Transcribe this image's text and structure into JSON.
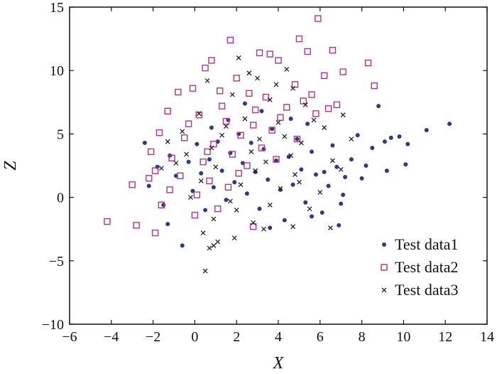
{
  "chart_data": {
    "type": "scatter",
    "title": "",
    "xlabel": "X",
    "ylabel": "Z",
    "xlim": [
      -6,
      14
    ],
    "ylim": [
      -10,
      15
    ],
    "xticks": [
      -6,
      -4,
      -2,
      0,
      2,
      4,
      6,
      8,
      10,
      12,
      14
    ],
    "yticks": [
      -10,
      -5,
      0,
      5,
      10,
      15
    ],
    "xtick_labels": [
      "−6",
      "−4",
      "−2",
      "0",
      "2",
      "4",
      "6",
      "8",
      "10",
      "12",
      "14"
    ],
    "ytick_labels": [
      "−10",
      "−5",
      "0",
      "5",
      "10",
      "15"
    ],
    "grid": false,
    "legend_position": "bottom-right",
    "series": [
      {
        "name": "Test data1",
        "marker": "dot",
        "color": "#2e3a87",
        "points": [
          [
            12.2,
            5.8
          ],
          [
            11.1,
            5.3
          ],
          [
            10.2,
            4.2
          ],
          [
            9.8,
            4.8
          ],
          [
            9.1,
            4.4
          ],
          [
            8.8,
            7.2
          ],
          [
            9.4,
            4.7
          ],
          [
            8.5,
            3.9
          ],
          [
            8.2,
            2.5
          ],
          [
            7.8,
            4.9
          ],
          [
            7.5,
            3.0
          ],
          [
            7.2,
            1.6
          ],
          [
            7.0,
            -0.5
          ],
          [
            6.8,
            2.4
          ],
          [
            6.6,
            4.1
          ],
          [
            6.4,
            0.9
          ],
          [
            6.1,
            -1.2
          ],
          [
            5.8,
            1.8
          ],
          [
            5.6,
            3.6
          ],
          [
            5.3,
            -0.4
          ],
          [
            5.1,
            2.2
          ],
          [
            4.9,
            4.6
          ],
          [
            4.7,
            1.0
          ],
          [
            4.5,
            3.2
          ],
          [
            4.3,
            -1.8
          ],
          [
            4.1,
            0.6
          ],
          [
            3.9,
            2.9
          ],
          [
            3.7,
            5.4
          ],
          [
            3.5,
            1.4
          ],
          [
            3.3,
            3.8
          ],
          [
            3.1,
            -0.9
          ],
          [
            2.9,
            2.0
          ],
          [
            2.7,
            4.3
          ],
          [
            2.5,
            0.3
          ],
          [
            2.3,
            2.7
          ],
          [
            2.1,
            5.0
          ],
          [
            1.9,
            1.2
          ],
          [
            1.7,
            3.5
          ],
          [
            1.5,
            -0.2
          ],
          [
            1.3,
            2.1
          ],
          [
            1.1,
            4.4
          ],
          [
            0.9,
            0.8
          ],
          [
            0.7,
            3.0
          ],
          [
            0.5,
            -1.0
          ],
          [
            0.3,
            1.9
          ],
          [
            0.1,
            4.2
          ],
          [
            -0.1,
            0.5
          ],
          [
            -0.3,
            2.8
          ],
          [
            -0.6,
            -3.8
          ],
          [
            -0.9,
            1.7
          ],
          [
            -1.2,
            3.3
          ],
          [
            -1.5,
            -0.6
          ],
          [
            -1.8,
            2.4
          ],
          [
            -2.2,
            0.9
          ],
          [
            -2.4,
            4.3
          ],
          [
            -1.3,
            -2.1
          ],
          [
            6.2,
            2.0
          ],
          [
            7.1,
            0.2
          ],
          [
            5.6,
            -1.5
          ],
          [
            8.0,
            1.5
          ],
          [
            9.2,
            2.1
          ],
          [
            10.1,
            2.6
          ],
          [
            6.9,
            -2.2
          ],
          [
            5.4,
            5.8
          ],
          [
            4.6,
            6.2
          ],
          [
            3.2,
            6.8
          ],
          [
            2.4,
            7.4
          ],
          [
            1.6,
            6.1
          ],
          [
            0.8,
            5.5
          ],
          [
            3.6,
            -2.4
          ]
        ]
      },
      {
        "name": "Test data2",
        "marker": "square",
        "color": "#b0348a",
        "points": [
          [
            5.9,
            14.1
          ],
          [
            5.0,
            12.5
          ],
          [
            1.7,
            12.4
          ],
          [
            3.1,
            11.4
          ],
          [
            3.6,
            11.3
          ],
          [
            4.0,
            10.8
          ],
          [
            6.6,
            11.6
          ],
          [
            5.4,
            11.5
          ],
          [
            0.5,
            10.2
          ],
          [
            0.8,
            10.8
          ],
          [
            2.0,
            9.4
          ],
          [
            4.8,
            8.9
          ],
          [
            6.2,
            9.6
          ],
          [
            7.1,
            9.9
          ],
          [
            8.3,
            10.6
          ],
          [
            8.6,
            8.8
          ],
          [
            -0.1,
            8.6
          ],
          [
            -0.8,
            8.3
          ],
          [
            1.2,
            8.4
          ],
          [
            2.6,
            8.2
          ],
          [
            3.4,
            7.9
          ],
          [
            5.2,
            7.6
          ],
          [
            6.8,
            7.3
          ],
          [
            -1.3,
            6.8
          ],
          [
            0.2,
            6.5
          ],
          [
            1.5,
            6.0
          ],
          [
            2.8,
            5.7
          ],
          [
            4.1,
            6.3
          ],
          [
            5.8,
            6.6
          ],
          [
            -1.7,
            5.1
          ],
          [
            -0.5,
            4.7
          ],
          [
            0.9,
            4.2
          ],
          [
            2.2,
            4.9
          ],
          [
            3.7,
            5.3
          ],
          [
            4.9,
            4.6
          ],
          [
            -2.1,
            3.6
          ],
          [
            -1.1,
            3.1
          ],
          [
            0.4,
            2.8
          ],
          [
            1.8,
            3.4
          ],
          [
            3.2,
            3.9
          ],
          [
            -1.9,
            2.1
          ],
          [
            -0.7,
            1.7
          ],
          [
            0.7,
            1.3
          ],
          [
            2.1,
            1.9
          ],
          [
            -2.2,
            1.5
          ],
          [
            -3.0,
            1.0
          ],
          [
            -1.2,
            0.6
          ],
          [
            0.1,
            0.2
          ],
          [
            1.6,
            0.8
          ],
          [
            -1.6,
            -0.6
          ],
          [
            0.0,
            -1.4
          ],
          [
            -2.8,
            -2.2
          ],
          [
            -4.2,
            -1.9
          ],
          [
            -1.9,
            -2.8
          ],
          [
            2.8,
            -2.3
          ],
          [
            1.1,
            -0.9
          ],
          [
            2.5,
            2.5
          ],
          [
            3.9,
            3.0
          ],
          [
            4.4,
            7.1
          ],
          [
            2.9,
            6.9
          ],
          [
            1.3,
            7.2
          ],
          [
            5.6,
            8.1
          ],
          [
            6.4,
            7.0
          ],
          [
            0.6,
            3.6
          ],
          [
            -0.3,
            5.8
          ]
        ]
      },
      {
        "name": "Test data3",
        "marker": "cross",
        "color": "#222222",
        "points": [
          [
            2.1,
            11.0
          ],
          [
            4.4,
            10.1
          ],
          [
            3.0,
            9.4
          ],
          [
            0.6,
            9.2
          ],
          [
            4.7,
            8.6
          ],
          [
            1.8,
            8.1
          ],
          [
            3.6,
            7.7
          ],
          [
            5.3,
            7.3
          ],
          [
            7.1,
            6.5
          ],
          [
            0.2,
            6.6
          ],
          [
            2.4,
            6.2
          ],
          [
            4.0,
            5.9
          ],
          [
            6.2,
            5.5
          ],
          [
            -0.6,
            5.2
          ],
          [
            1.3,
            4.9
          ],
          [
            3.1,
            4.6
          ],
          [
            5.1,
            4.3
          ],
          [
            7.5,
            4.6
          ],
          [
            -1.3,
            4.4
          ],
          [
            0.8,
            3.9
          ],
          [
            2.7,
            3.6
          ],
          [
            4.6,
            3.3
          ],
          [
            6.6,
            2.9
          ],
          [
            -0.9,
            2.7
          ],
          [
            1.0,
            2.4
          ],
          [
            2.9,
            2.1
          ],
          [
            4.8,
            1.8
          ],
          [
            7.0,
            2.2
          ],
          [
            0.3,
            1.3
          ],
          [
            2.2,
            1.0
          ],
          [
            4.1,
            0.7
          ],
          [
            6.0,
            0.4
          ],
          [
            -0.2,
            0.0
          ],
          [
            1.7,
            -0.3
          ],
          [
            3.6,
            -0.6
          ],
          [
            5.5,
            -0.9
          ],
          [
            0.9,
            -1.7
          ],
          [
            2.8,
            -2.0
          ],
          [
            4.7,
            -2.3
          ],
          [
            6.5,
            -2.4
          ],
          [
            0.4,
            -2.8
          ],
          [
            1.9,
            -3.2
          ],
          [
            3.3,
            -2.5
          ],
          [
            1.1,
            -3.5
          ],
          [
            0.7,
            -4.0
          ],
          [
            0.9,
            -3.8
          ],
          [
            0.5,
            -5.8
          ],
          [
            -1.6,
            2.3
          ],
          [
            3.9,
            8.9
          ],
          [
            2.6,
            9.8
          ],
          [
            5.7,
            6.1
          ],
          [
            3.4,
            2.8
          ],
          [
            1.5,
            5.6
          ],
          [
            4.3,
            4.8
          ],
          [
            2.0,
            -1.0
          ],
          [
            5.0,
            1.2
          ],
          [
            -0.4,
            3.4
          ]
        ]
      }
    ]
  }
}
